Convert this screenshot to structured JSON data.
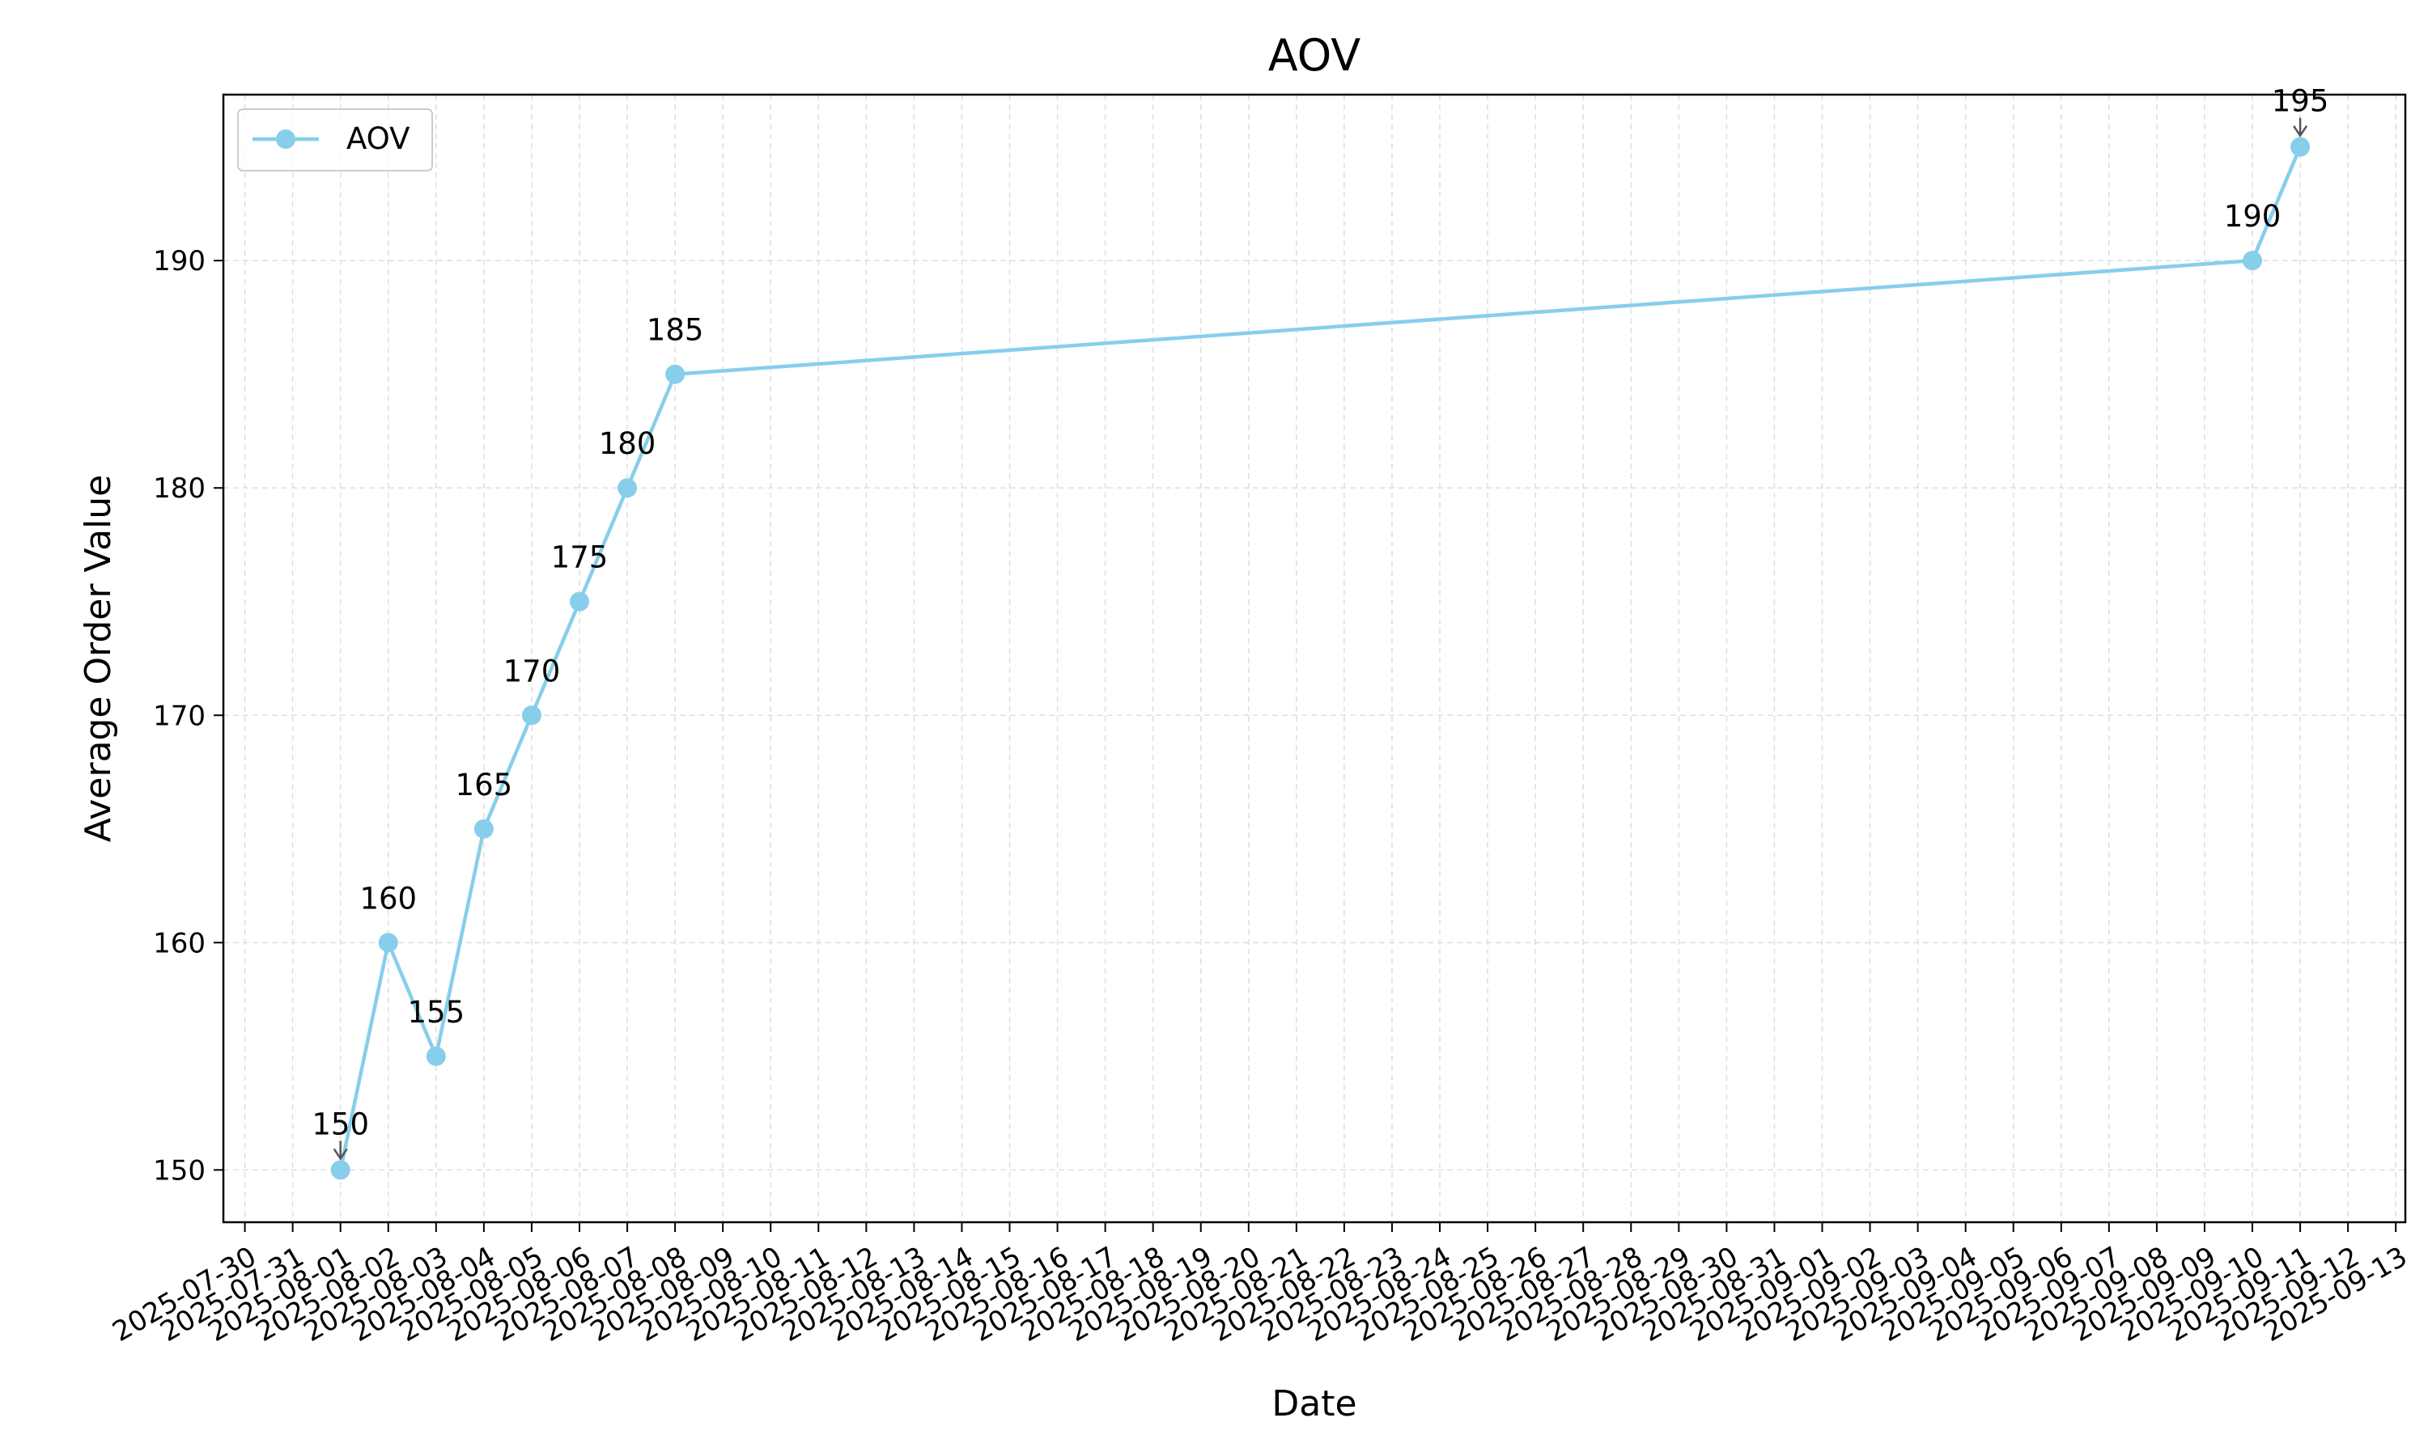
{
  "chart_data": {
    "type": "line",
    "title": "AOV",
    "xlabel": "Date",
    "ylabel": "Average Order Value",
    "x_tick_labels": [
      "2025-07-30",
      "2025-07-31",
      "2025-08-01",
      "2025-08-02",
      "2025-08-03",
      "2025-08-04",
      "2025-08-05",
      "2025-08-06",
      "2025-08-07",
      "2025-08-08",
      "2025-08-09",
      "2025-08-10",
      "2025-08-11",
      "2025-08-12",
      "2025-08-13",
      "2025-08-14",
      "2025-08-15",
      "2025-08-16",
      "2025-08-17",
      "2025-08-18",
      "2025-08-19",
      "2025-08-20",
      "2025-08-21",
      "2025-08-22",
      "2025-08-23",
      "2025-08-24",
      "2025-08-25",
      "2025-08-26",
      "2025-08-27",
      "2025-08-28",
      "2025-08-29",
      "2025-08-30",
      "2025-08-31",
      "2025-09-01",
      "2025-09-02",
      "2025-09-03",
      "2025-09-04",
      "2025-09-05",
      "2025-09-06",
      "2025-09-07",
      "2025-09-08",
      "2025-09-09",
      "2025-09-10",
      "2025-09-11",
      "2025-09-12",
      "2025-09-13"
    ],
    "y_ticks": [
      150,
      160,
      170,
      180,
      190
    ],
    "ylim": [
      147.7,
      197.3
    ],
    "xlim": [
      "2025-07-30",
      "2025-09-13"
    ],
    "grid": true,
    "legend_position": "top-left",
    "series": [
      {
        "name": "AOV",
        "color": "#87CEEB",
        "marker": "circle",
        "x": [
          "2025-08-01",
          "2025-08-02",
          "2025-08-03",
          "2025-08-04",
          "2025-08-05",
          "2025-08-06",
          "2025-08-07",
          "2025-08-08",
          "2025-09-10",
          "2025-09-11"
        ],
        "values": [
          150,
          160,
          155,
          165,
          170,
          175,
          180,
          185,
          190,
          195
        ],
        "data_labels": [
          "150",
          "160",
          "155",
          "165",
          "170",
          "175",
          "180",
          "185",
          "190",
          "195"
        ]
      }
    ],
    "annotation_arrows": [
      0,
      9
    ]
  }
}
